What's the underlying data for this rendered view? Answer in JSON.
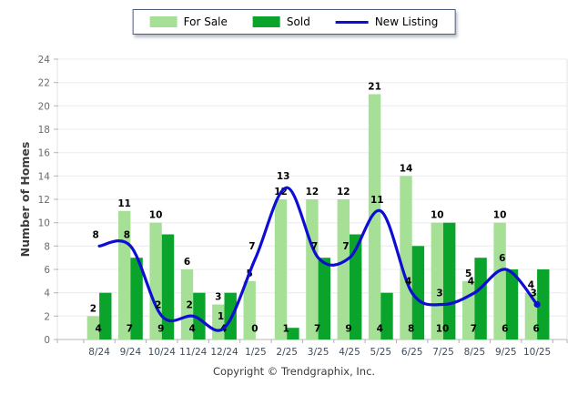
{
  "chart_data": {
    "type": "bar+line",
    "categories": [
      "8/24",
      "9/24",
      "10/24",
      "11/24",
      "12/24",
      "1/25",
      "2/25",
      "3/25",
      "4/25",
      "5/25",
      "6/25",
      "7/25",
      "8/25",
      "9/25",
      "10/25"
    ],
    "series": [
      {
        "name": "For Sale",
        "type": "bar",
        "color": "#a6e096",
        "value_labels": "above",
        "values": [
          2,
          11,
          10,
          6,
          3,
          5,
          12,
          12,
          12,
          21,
          14,
          10,
          5,
          10,
          4
        ]
      },
      {
        "name": "Sold",
        "type": "bar",
        "color": "#0aa32b",
        "value_labels": "base",
        "values": [
          4,
          7,
          9,
          4,
          4,
          0,
          1,
          7,
          9,
          4,
          8,
          10,
          7,
          6,
          6
        ]
      },
      {
        "name": "New Listing",
        "type": "line",
        "color": "#0d0dd3",
        "value_labels": "above",
        "end_dot": true,
        "values": [
          8,
          8,
          2,
          2,
          1,
          7,
          13,
          7,
          7,
          11,
          4,
          3,
          4,
          6,
          3
        ]
      }
    ],
    "ylabel": "Number of Homes",
    "xlabel": "",
    "ylim": [
      0,
      24
    ],
    "ytick_step": 2,
    "grid": true,
    "legend_position": "top"
  },
  "footer": {
    "copyright": "Copyright © Trendgraphix, Inc."
  }
}
